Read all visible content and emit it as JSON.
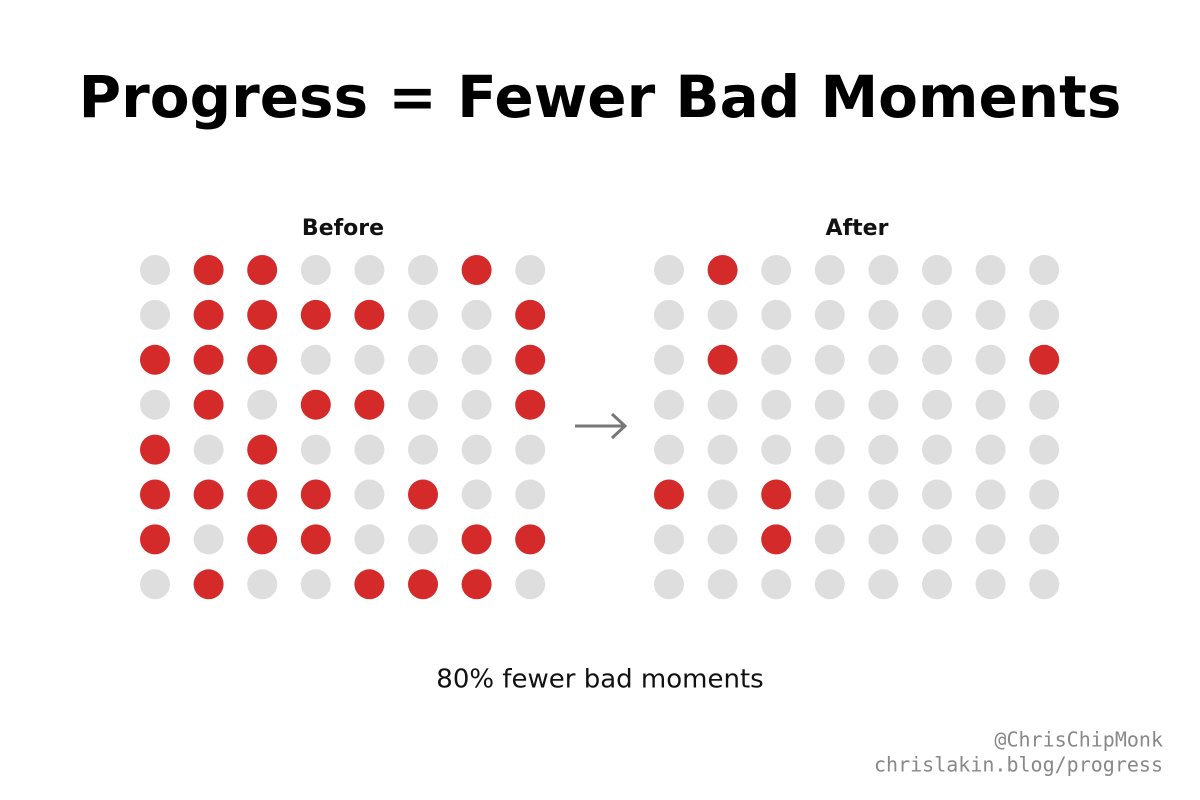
{
  "title": "Progress = Fewer Bad Moments",
  "colors": {
    "bad": "#d42a2a",
    "neutral": "#dedede"
  },
  "panels": [
    {
      "label": "Before",
      "grid": [
        [
          0,
          1,
          1,
          0,
          0,
          0,
          1,
          0
        ],
        [
          0,
          1,
          1,
          1,
          1,
          0,
          0,
          1
        ],
        [
          1,
          1,
          1,
          0,
          0,
          0,
          0,
          1
        ],
        [
          0,
          1,
          0,
          1,
          1,
          0,
          0,
          1
        ],
        [
          1,
          0,
          1,
          0,
          0,
          0,
          0,
          0
        ],
        [
          1,
          1,
          1,
          1,
          0,
          1,
          0,
          0
        ],
        [
          1,
          0,
          1,
          1,
          0,
          0,
          1,
          1
        ],
        [
          0,
          1,
          0,
          0,
          1,
          1,
          1,
          0
        ]
      ]
    },
    {
      "label": "After",
      "grid": [
        [
          0,
          1,
          0,
          0,
          0,
          0,
          0,
          0
        ],
        [
          0,
          0,
          0,
          0,
          0,
          0,
          0,
          0
        ],
        [
          0,
          1,
          0,
          0,
          0,
          0,
          0,
          1
        ],
        [
          0,
          0,
          0,
          0,
          0,
          0,
          0,
          0
        ],
        [
          0,
          0,
          0,
          0,
          0,
          0,
          0,
          0
        ],
        [
          1,
          0,
          1,
          0,
          0,
          0,
          0,
          0
        ],
        [
          0,
          0,
          1,
          0,
          0,
          0,
          0,
          0
        ],
        [
          0,
          0,
          0,
          0,
          0,
          0,
          0,
          0
        ]
      ]
    }
  ],
  "caption": "80% fewer bad moments",
  "footer": {
    "handle": "@ChrisChipMonk",
    "url": "chrislakin.blog/progress"
  }
}
